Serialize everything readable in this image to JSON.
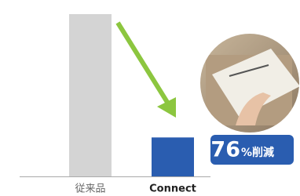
{
  "chart_data": {
    "type": "bar",
    "categories": [
      "従来品",
      "Connect"
    ],
    "values": [
      100,
      24
    ],
    "colors": [
      "#d4d4d4",
      "#2a5db0"
    ],
    "annotation": {
      "number": "76",
      "suffix": "%削減"
    }
  }
}
